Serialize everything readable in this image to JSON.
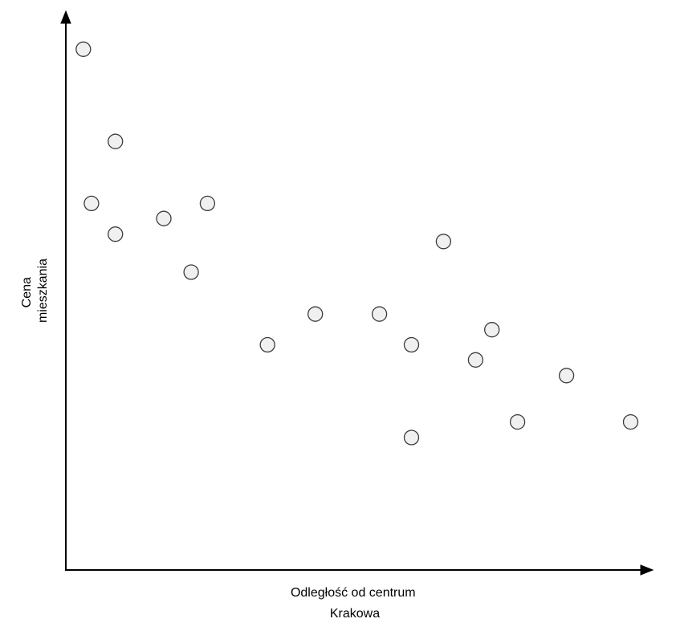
{
  "chart_data": {
    "type": "scatter",
    "title": "",
    "xlabel": [
      "Odległość od centrum",
      "Krakowa"
    ],
    "ylabel": [
      "Cena",
      "mieszkania"
    ],
    "grid": false,
    "legend": "none",
    "xlim": [
      0,
      100
    ],
    "ylim": [
      0,
      100
    ],
    "point_fill": "#f0f0f0",
    "point_stroke": "#3c3c3c",
    "axis_color": "#000000",
    "series": [
      {
        "points": [
          {
            "x": 4.1,
            "y": 93.2
          },
          {
            "x": 9.6,
            "y": 76.7
          },
          {
            "x": 5.5,
            "y": 65.6
          },
          {
            "x": 9.6,
            "y": 60.1
          },
          {
            "x": 17.9,
            "y": 62.9
          },
          {
            "x": 25.4,
            "y": 65.6
          },
          {
            "x": 22.6,
            "y": 53.3
          },
          {
            "x": 35.7,
            "y": 40.3
          },
          {
            "x": 43.9,
            "y": 45.8
          },
          {
            "x": 54.9,
            "y": 45.8
          },
          {
            "x": 60.4,
            "y": 40.3
          },
          {
            "x": 60.4,
            "y": 23.7
          },
          {
            "x": 65.9,
            "y": 58.8
          },
          {
            "x": 71.4,
            "y": 37.6
          },
          {
            "x": 74.2,
            "y": 43.0
          },
          {
            "x": 78.6,
            "y": 26.5
          },
          {
            "x": 87.0,
            "y": 34.8
          },
          {
            "x": 98.0,
            "y": 26.5
          }
        ]
      }
    ]
  }
}
